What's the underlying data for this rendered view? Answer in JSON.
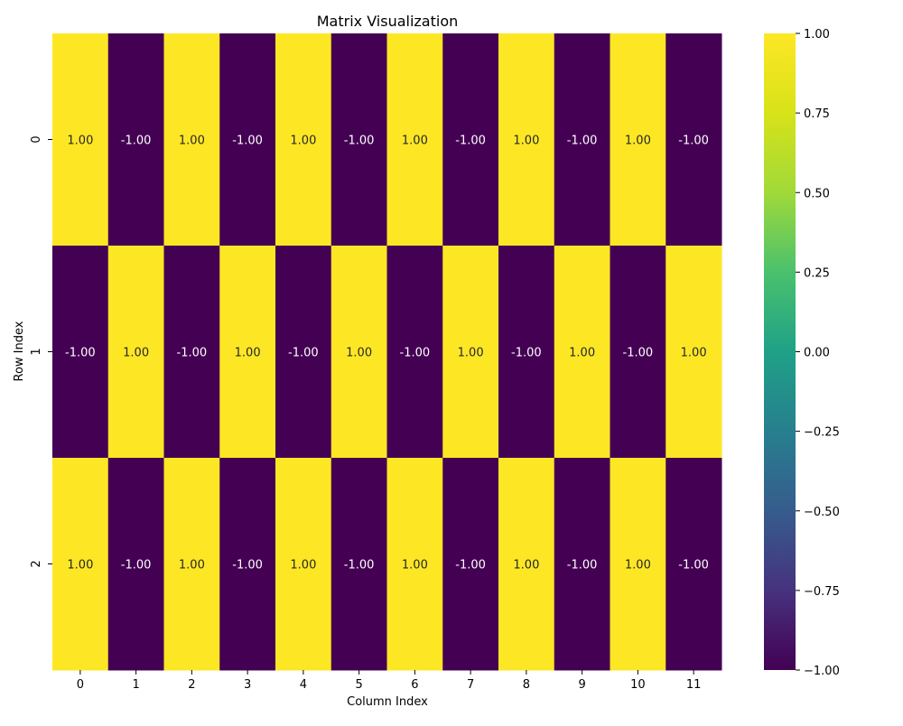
{
  "chart_data": {
    "type": "heatmap",
    "title": "Matrix Visualization",
    "xlabel": "Column Index",
    "ylabel": "Row Index",
    "x_categories": [
      "0",
      "1",
      "2",
      "3",
      "4",
      "5",
      "6",
      "7",
      "8",
      "9",
      "10",
      "11"
    ],
    "y_categories": [
      "0",
      "1",
      "2"
    ],
    "values": [
      [
        1,
        -1,
        1,
        -1,
        1,
        -1,
        1,
        -1,
        1,
        -1,
        1,
        -1
      ],
      [
        -1,
        1,
        -1,
        1,
        -1,
        1,
        -1,
        1,
        -1,
        1,
        -1,
        1
      ],
      [
        1,
        -1,
        1,
        -1,
        1,
        -1,
        1,
        -1,
        1,
        -1,
        1,
        -1
      ]
    ],
    "annotation_format": "2 decimals",
    "colormap": "viridis",
    "vmin": -1,
    "vmax": 1,
    "colorbar": {
      "ticks": [
        "-1.00",
        "-0.75",
        "-0.50",
        "-0.25",
        "0.00",
        "0.25",
        "0.50",
        "0.75",
        "1.00"
      ]
    },
    "colors": {
      "low": "#440154",
      "high": "#fde725"
    }
  }
}
